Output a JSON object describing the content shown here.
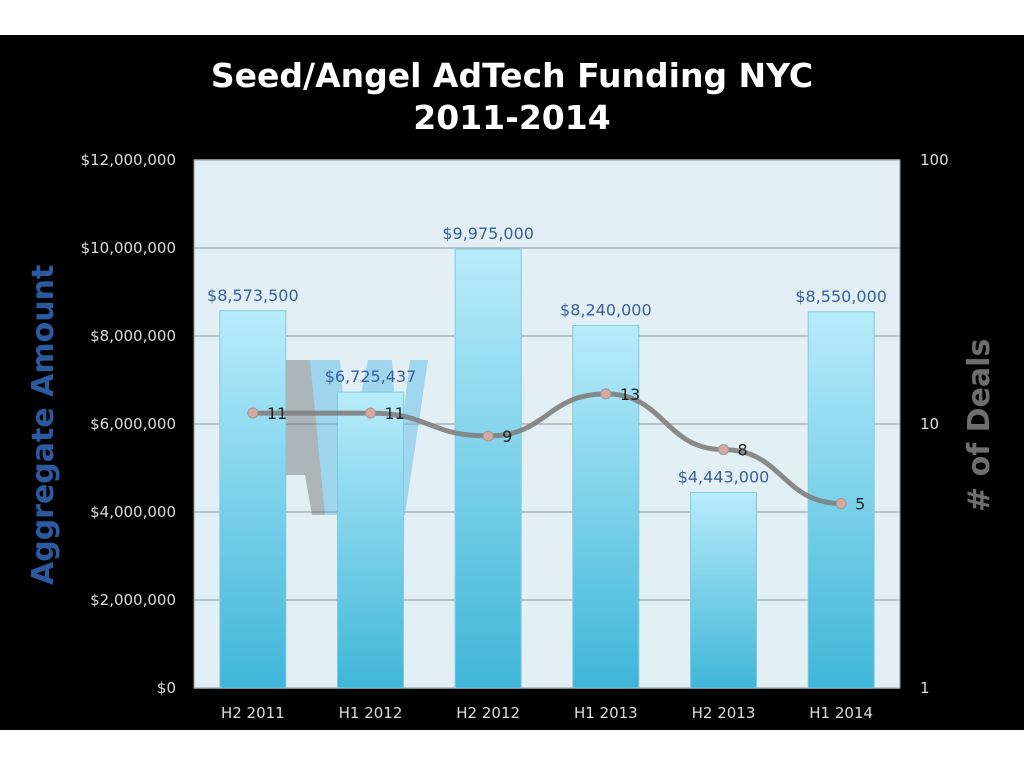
{
  "chart_data": {
    "type": "bar+line",
    "title": [
      "Seed/Angel AdTech Funding NYC",
      "2011-2014"
    ],
    "categories": [
      "H2 2011",
      "H1 2012",
      "H2 2012",
      "H1 2013",
      "H2 2013",
      "H1 2014"
    ],
    "series": [
      {
        "name": "Aggregate Amount",
        "type": "bar",
        "axis": "left",
        "values": [
          8573500,
          6725437,
          9975000,
          8240000,
          4443000,
          8550000
        ],
        "labels": [
          "$8,573,500",
          "$6,725,437",
          "$9,975,000",
          "$8,240,000",
          "$4,443,000",
          "$8,550,000"
        ]
      },
      {
        "name": "# of Deals",
        "type": "line",
        "axis": "right",
        "values": [
          11,
          11,
          9,
          13,
          8,
          5
        ],
        "labels": [
          "11",
          "11",
          "9",
          "13",
          "8",
          "5"
        ]
      }
    ],
    "ylabel": "Aggregate  Amount",
    "y2label": "# of Deals",
    "ylim": [
      0,
      12000000
    ],
    "yticks": [
      "$0",
      "$2,000,000",
      "$4,000,000",
      "$6,000,000",
      "$8,000,000",
      "$10,000,000",
      "$12,000,000"
    ],
    "ytick_values": [
      0,
      2000000,
      4000000,
      6000000,
      8000000,
      10000000,
      12000000
    ],
    "y2scale": "log",
    "y2lim": [
      1,
      100
    ],
    "y2ticks": [
      "1",
      "10",
      "100"
    ],
    "y2tick_values": [
      1,
      10,
      100
    ],
    "grid": true,
    "watermark": "AW AlleyWatch",
    "colors": {
      "bar_top": "#b8ecfb",
      "bar_bottom": "#3fb6d8",
      "line": "#808080",
      "plot_bg": "#e2eff5",
      "ylabel": "#2b5aa0",
      "y2label": "#6e6e6e"
    }
  }
}
